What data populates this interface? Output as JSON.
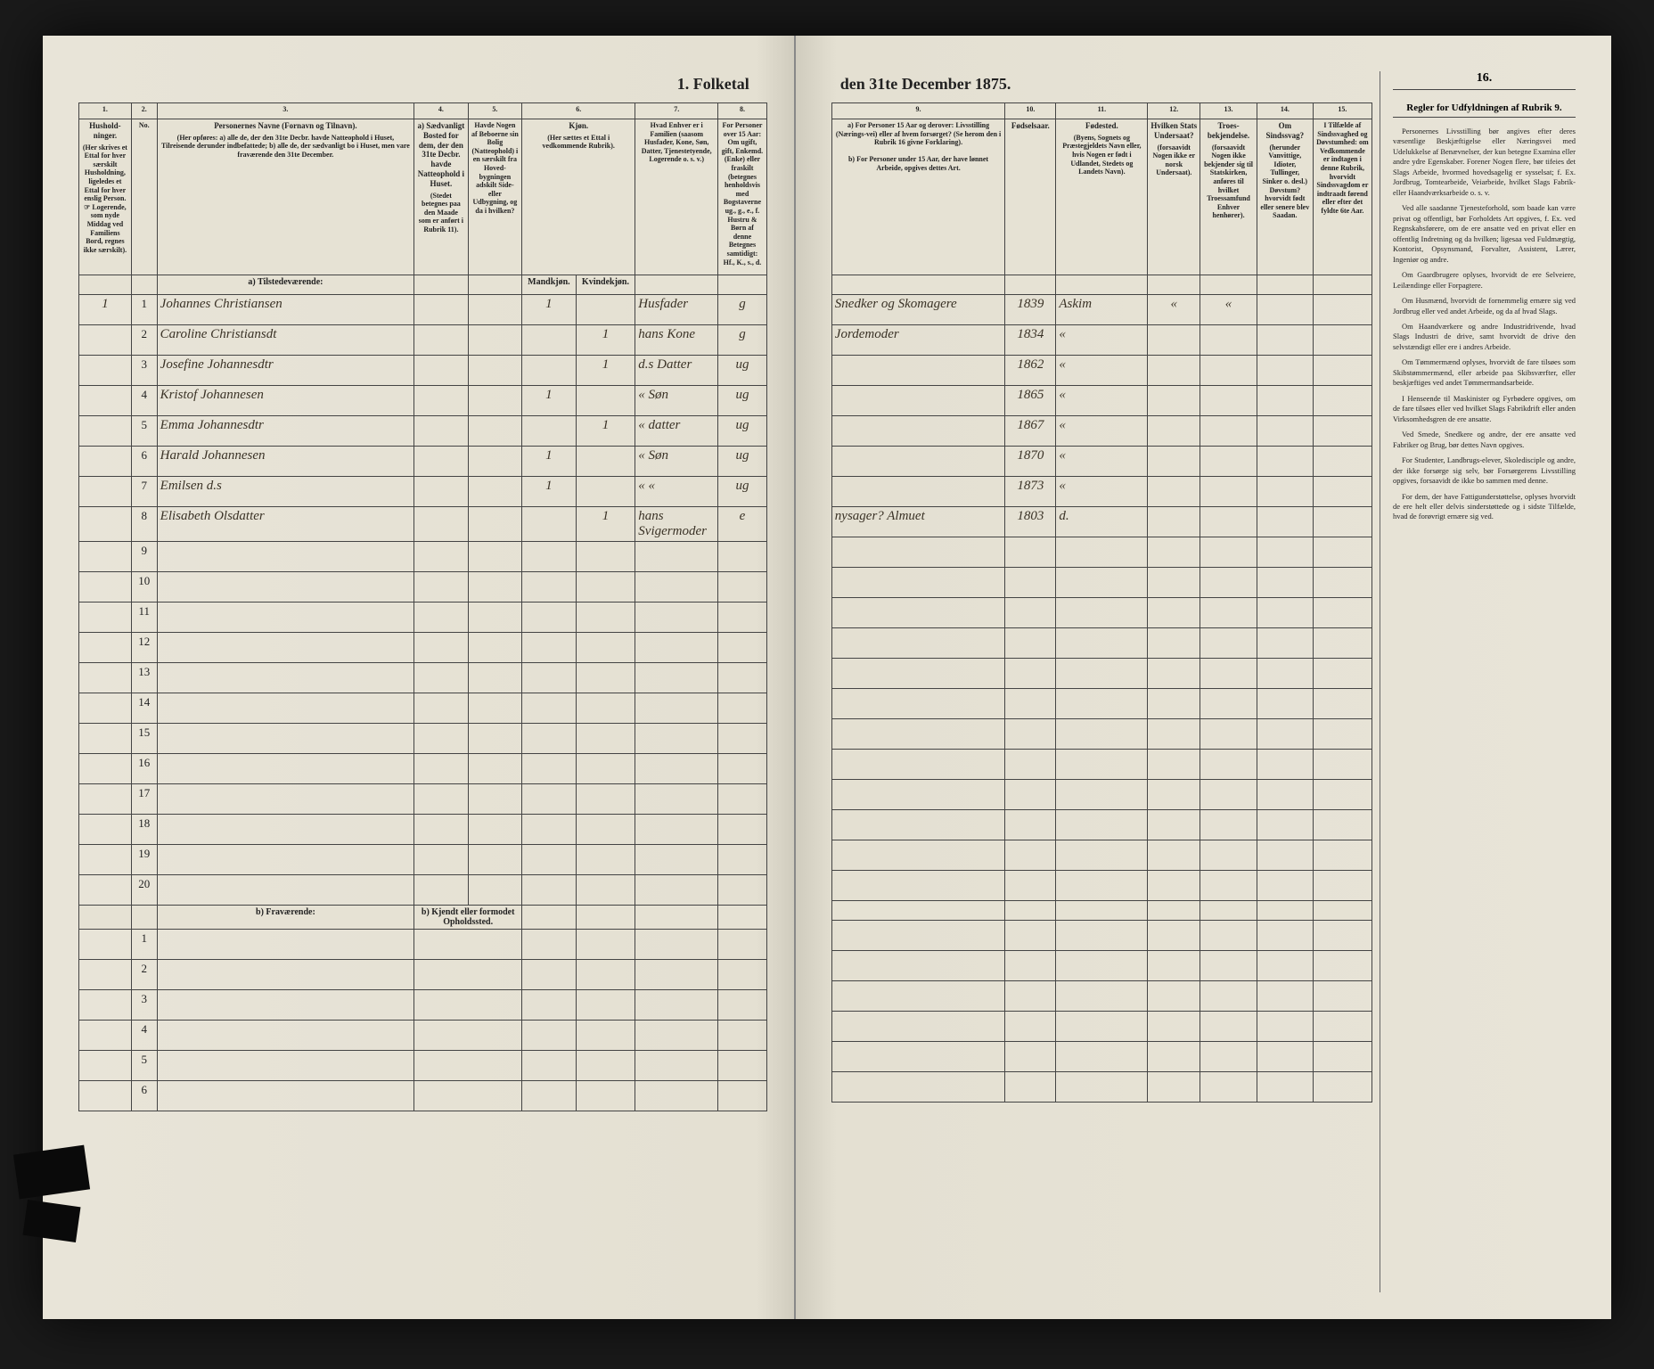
{
  "title_left": "1. Folketal",
  "title_right": "den 31te December 1875.",
  "columns_left": {
    "c1": "1.",
    "c2": "2.",
    "c3": "3.",
    "c4": "4.",
    "c5": "5.",
    "c6": "6.",
    "c7": "7.",
    "c8": "8."
  },
  "columns_right": {
    "c9": "9.",
    "c10": "10.",
    "c11": "11.",
    "c12": "12.",
    "c13": "13.",
    "c14": "14.",
    "c15": "15.",
    "c16": "16."
  },
  "headers_left": {
    "h1": "Hushold-ninger.",
    "h1_sub": "(Her skrives et Ettal for hver særskilt Husholdning, ligeledes et Ettal for hver enslig Person. ☞ Logerende, som nyde Middag ved Familiens Bord, regnes ikke særskilt).",
    "h2": "No.",
    "h3_main": "Personernes Navne (Fornavn og Tilnavn).",
    "h3_sub": "(Her opføres:\na) alle de, der den 31te Decbr. havde Natteophold i Huset, Tilreisende derunder indbefattede;\nb) alle de, der sædvanligt bo i Huset, men vare fraværende den 31te December.",
    "h4_main": "a) Sædvanligt Bosted for dem, der den 31te Decbr. havde Natteophold i Huset.",
    "h4_sub": "(Stedet betegnes paa den Maade som er anført i Rubrik 11).",
    "h5": "Havde Nogen af Beboerne sin Bolig (Natteophold) i en særskilt fra Hoved-bygningen adskilt Side- eller Udbygning, og da i hvilken?",
    "h6_main": "Kjøn.",
    "h6_sub": "(Her sættes et Ettal i vedkommende Rubrik).",
    "h6_m": "Mandkjøn.",
    "h6_k": "Kvindekjøn.",
    "h7": "Hvad Enhver er i Familien (saasom Husfader, Kone, Søn, Datter, Tjenestetyende, Logerende o. s. v.)",
    "h8_main": "For Personer over 15 Aar: Om ugift, gift, Enkemd. (Enke) eller fraskilt (betegnes henholdsvis med Bogstaverne ug., g., e., f.",
    "h8_sub": "Hustru & Børn af denne Betegnes samtidigt: Hf., K., s., d."
  },
  "headers_right": {
    "h9_a": "a) For Personer 15 Aar og derover: Livsstilling (Nærings-vei) eller af hvem forsørget? (Se herom den i Rubrik 16 givne Forklaring).",
    "h9_b": "b) For Personer under 15 Aar, der have lønnet Arbeide, opgives dettes Art.",
    "h10": "Fødselsaar.",
    "h11_main": "Fødested.",
    "h11_sub": "(Byens, Sognets og Præstegjeldets Navn eller, hvis Nogen er født i Udlandet, Stedets og Landets Navn).",
    "h12_main": "Hvilken Stats Undersaat?",
    "h12_sub": "(forsaavidt Nogen ikke er norsk Undersaat).",
    "h13_main": "Troes-bekjendelse.",
    "h13_sub": "(forsaavidt Nogen ikke bekjender sig til Statskirken, anføres til hvilket Troessamfund Enhver henhører).",
    "h14_main": "Om Sindssvag?",
    "h14_sub": "(herunder Vanvittige, Idioter, Tullinger, Sinker o. desl.) Døvstum? hvorvidt født eller senere blev Saadan.",
    "h15": "I Tilfælde af Sindssvaghed og Døvstumhed: om Vedkommende er indtagen i denne Rubrik, hvorvidt Sindssvagdom er indtraadt førend eller efter det fyldte 6te Aar."
  },
  "section_a": "a) Tilstedeværende:",
  "section_b": "b) Fraværende:",
  "section_b_right": "b) Kjendt eller formodet Opholdssted.",
  "rows": [
    {
      "hh": "1",
      "n": "1",
      "name": "Johannes Christiansen",
      "c4": "",
      "c5": "",
      "m": "1",
      "k": "",
      "rel": "Husfader",
      "stat": "g",
      "occ": "Snedker og Skomagere",
      "year": "1839",
      "place": "Askim",
      "c12": "«",
      "c13": "«"
    },
    {
      "hh": "",
      "n": "2",
      "name": "Caroline Christiansdt",
      "c4": "",
      "c5": "",
      "m": "",
      "k": "1",
      "rel": "hans Kone",
      "stat": "g",
      "occ": "Jordemoder",
      "year": "1834",
      "place": "«",
      "c12": "",
      "c13": ""
    },
    {
      "hh": "",
      "n": "3",
      "name": "Josefine Johannesdtr",
      "c4": "",
      "c5": "",
      "m": "",
      "k": "1",
      "rel": "d.s Datter",
      "stat": "ug",
      "occ": "",
      "year": "1862",
      "place": "«",
      "c12": "",
      "c13": ""
    },
    {
      "hh": "",
      "n": "4",
      "name": "Kristof Johannesen",
      "c4": "",
      "c5": "",
      "m": "1",
      "k": "",
      "rel": "« Søn",
      "stat": "ug",
      "occ": "",
      "year": "1865",
      "place": "«",
      "c12": "",
      "c13": ""
    },
    {
      "hh": "",
      "n": "5",
      "name": "Emma Johannesdtr",
      "c4": "",
      "c5": "",
      "m": "",
      "k": "1",
      "rel": "« datter",
      "stat": "ug",
      "occ": "",
      "year": "1867",
      "place": "«",
      "c12": "",
      "c13": ""
    },
    {
      "hh": "",
      "n": "6",
      "name": "Harald Johannesen",
      "c4": "",
      "c5": "",
      "m": "1",
      "k": "",
      "rel": "« Søn",
      "stat": "ug",
      "occ": "",
      "year": "1870",
      "place": "«",
      "c12": "",
      "c13": ""
    },
    {
      "hh": "",
      "n": "7",
      "name": "Emilsen d.s",
      "c4": "",
      "c5": "",
      "m": "1",
      "k": "",
      "rel": "« «",
      "stat": "ug",
      "occ": "",
      "year": "1873",
      "place": "«",
      "c12": "",
      "c13": ""
    },
    {
      "hh": "",
      "n": "8",
      "name": "Elisabeth Olsdatter",
      "c4": "",
      "c5": "",
      "m": "",
      "k": "1",
      "rel": "hans Svigermoder",
      "stat": "e",
      "occ": "nysager? Almuet",
      "year": "1803",
      "place": "d.",
      "c12": "",
      "c13": ""
    }
  ],
  "empty_nums": [
    "9",
    "10",
    "11",
    "12",
    "13",
    "14",
    "15",
    "16",
    "17",
    "18",
    "19",
    "20"
  ],
  "b_nums": [
    "1",
    "2",
    "3",
    "4",
    "5",
    "6"
  ],
  "sidebar": {
    "col16": "16.",
    "title": "Regler for Udfyldningen\naf\nRubrik 9.",
    "paragraphs": [
      "Personernes Livsstilling bør angives efter deres væsentlige Beskjæftigelse eller Næringsvei med Udelukkelse af Benævnelser, der kun betegne Examina eller andre ydre Egenskaber. Forener Nogen flere, bør tifeies det Slags Arbeide, hvormed hovedsagelig er sysselsat; f. Ex. Jordbrug, Tomtearbeide, Veiarbeide, hvilket Slags Fabrik- eller Haandværksarbeide o. s. v.",
      "Ved alle saadanne Tjenesteforhold, som baade kan være privat og offentligt, bør Forholdets Art opgives, f. Ex. ved Regnskabsførere, om de ere ansatte ved en privat eller en offentlig Indretning og da hvilken; ligesaa ved Fuldmægtig, Kontorist, Opsynsmand, Forvalter, Assistent, Lærer, Ingeniør og andre.",
      "Om Gaardbrugere oplyses, hvorvidt de ere Selveiere, Leilændinge eller Forpagtere.",
      "Om Husmænd, hvorvidt de fornemmelig ernære sig ved Jordbrug eller ved andet Arbeide, og da af hvad Slags.",
      "Om Haandværkere og andre Industridrivende, hvad Slags Industri de drive, samt hvorvidt de drive den selvstændigt eller ere i andres Arbeide.",
      "Om Tømmermænd oplyses, hvorvidt de fare tilsøes som Skibstømmermænd, eller arbeide paa Skibsværfter, eller beskjæftiges ved andet Tømmermandsarbeide.",
      "I Henseende til Maskinister og Fyrbødere opgives, om de fare tilsøes eller ved hvilket Slags Fabrikdrift eller anden Virksomhedsgren de ere ansatte.",
      "Ved Smede, Snedkere og andre, der ere ansatte ved Fabriker og Brug, bør dettes Navn opgives.",
      "For Studenter, Landbrugs-elever, Skoledisciple og andre, der ikke forsørge sig selv, bør Forsørgerens Livsstilling opgives, forsaavidt de ikke bo sammen med denne.",
      "For dem, der have Fattigunderstøttelse, oplyses hvorvidt de ere helt eller delvis sinderstøttede og i sidste Tilfælde, hvad de forøvrigt ernære sig ved."
    ]
  }
}
